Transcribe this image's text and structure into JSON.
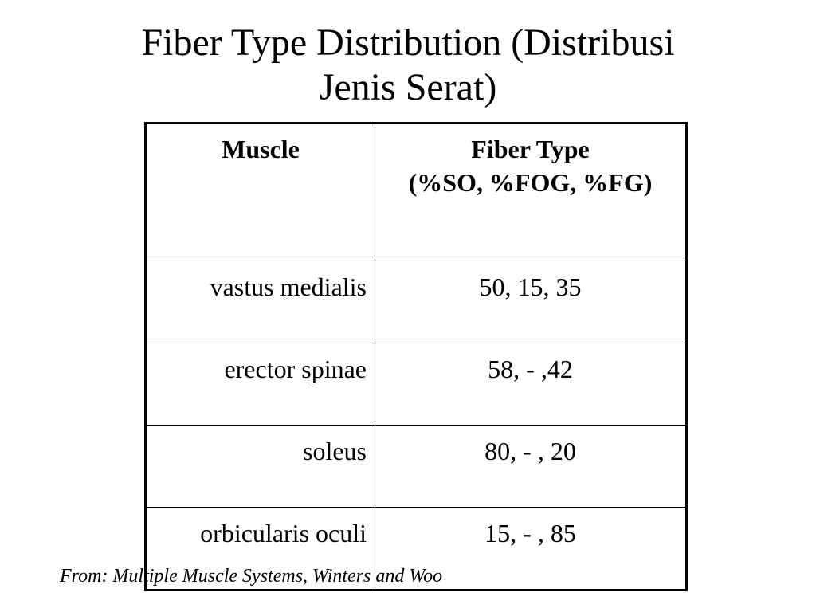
{
  "title": {
    "line1": "Fiber Type Distribution (Distribusi",
    "line2": "Jenis Serat)"
  },
  "table": {
    "headers": {
      "muscle": "Muscle",
      "fiber_type": "Fiber Type",
      "fiber_type_sub": "(%SO, %FOG, %FG)"
    },
    "rows": [
      {
        "muscle": "vastus medialis",
        "fiber": "50, 15, 35"
      },
      {
        "muscle": "erector spinae",
        "fiber": "58, - ,42"
      },
      {
        "muscle": "soleus",
        "fiber": "80, - , 20"
      },
      {
        "muscle": "orbicularis oculi",
        "fiber": "15, - , 85"
      }
    ]
  },
  "source": "From: Multiple Muscle Systems, Winters and Woo"
}
